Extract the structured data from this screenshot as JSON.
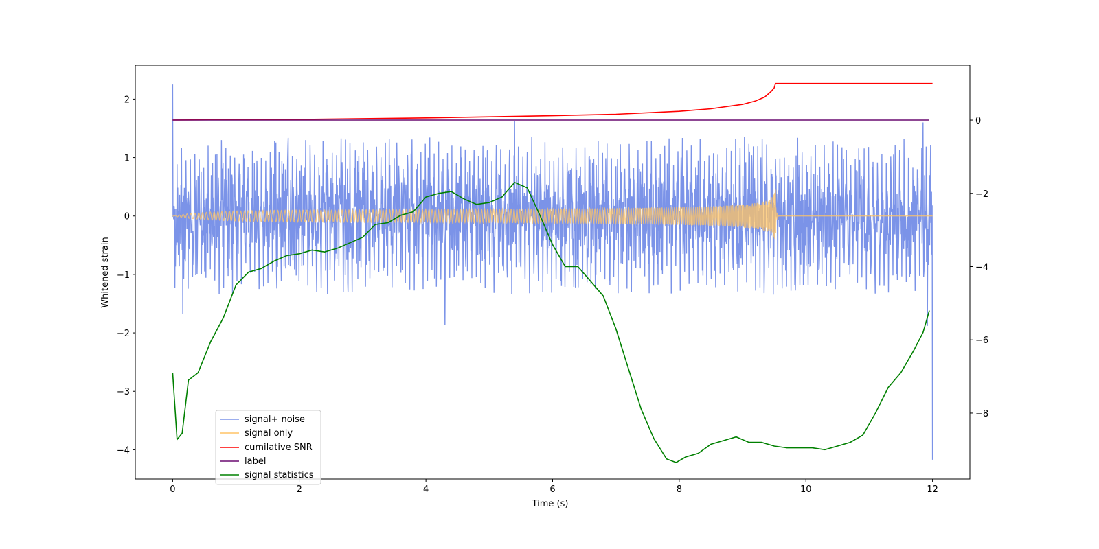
{
  "chart_data": {
    "type": "line",
    "xlabel": "Time (s)",
    "ylabel": "Whitened strain",
    "xlim": [
      -0.59,
      12.59
    ],
    "ylim_left": [
      -4.5,
      2.58
    ],
    "ylim_right": [
      -9.8,
      1.5
    ],
    "x_ticks": [
      0,
      2,
      4,
      6,
      8,
      10,
      12
    ],
    "y_ticks_left": [
      -4,
      -3,
      -2,
      -1,
      0,
      1,
      2
    ],
    "y_ticks_right": [
      -8,
      -6,
      -4,
      -2,
      0
    ],
    "x_tick_labels": [
      "0",
      "2",
      "4",
      "6",
      "8",
      "10",
      "12"
    ],
    "y_tick_labels_left": [
      "−4",
      "−3",
      "−2",
      "−1",
      "0",
      "1",
      "2"
    ],
    "y_tick_labels_right": [
      "−8",
      "−6",
      "−4",
      "−2",
      "0"
    ],
    "legend_position": "lower-left",
    "series": [
      {
        "name": "signal+ noise",
        "axis": "left",
        "color": "#7b93e8",
        "style": "dense noise, ±1 typical envelope with spikes",
        "x_range": [
          0,
          12
        ],
        "noise_envelope": [
          -1.0,
          1.0
        ],
        "spikes": [
          [
            0.0,
            2.25
          ],
          [
            0.16,
            -1.68
          ],
          [
            4.3,
            -1.86
          ],
          [
            5.4,
            1.62
          ],
          [
            11.85,
            1.6
          ],
          [
            11.92,
            -1.88
          ],
          [
            12.0,
            -4.17
          ]
        ]
      },
      {
        "name": "signal only",
        "axis": "left",
        "color": "#ffc466",
        "style": "chirp, amplitude growing to ±0.45 at merger",
        "x_range": [
          0,
          12
        ],
        "merger_time": 9.52,
        "peak_amplitude": 0.45
      },
      {
        "name": "cumilative SNR",
        "axis": "right",
        "color": "#ff0000",
        "x": [
          0,
          2,
          4,
          6,
          7,
          8,
          8.5,
          9,
          9.2,
          9.35,
          9.45,
          9.5,
          9.52,
          12
        ],
        "y": [
          0.0,
          0.02,
          0.06,
          0.12,
          0.16,
          0.24,
          0.31,
          0.43,
          0.52,
          0.63,
          0.78,
          0.88,
          1.0,
          1.0
        ]
      },
      {
        "name": "label",
        "axis": "right",
        "color": "#6a0a70",
        "x": [
          0,
          11.95
        ],
        "y": [
          0,
          0
        ]
      },
      {
        "name": "signal statistics",
        "axis": "right",
        "color": "#008000",
        "x": [
          0,
          0.07,
          0.15,
          0.25,
          0.4,
          0.6,
          0.8,
          1.0,
          1.2,
          1.4,
          1.6,
          1.8,
          2.0,
          2.2,
          2.4,
          2.6,
          2.8,
          3.0,
          3.2,
          3.4,
          3.6,
          3.8,
          4.0,
          4.2,
          4.4,
          4.6,
          4.8,
          5.0,
          5.2,
          5.4,
          5.6,
          5.8,
          6.0,
          6.2,
          6.4,
          6.6,
          6.8,
          7.0,
          7.2,
          7.4,
          7.6,
          7.8,
          7.95,
          8.1,
          8.3,
          8.5,
          8.7,
          8.9,
          9.1,
          9.3,
          9.5,
          9.7,
          9.9,
          10.1,
          10.3,
          10.5,
          10.7,
          10.9,
          11.1,
          11.3,
          11.5,
          11.7,
          11.85,
          11.95
        ],
        "y": [
          -6.9,
          -8.72,
          -8.55,
          -7.1,
          -6.9,
          -6.05,
          -5.4,
          -4.5,
          -4.15,
          -4.05,
          -3.85,
          -3.7,
          -3.65,
          -3.55,
          -3.6,
          -3.5,
          -3.35,
          -3.2,
          -2.85,
          -2.8,
          -2.6,
          -2.5,
          -2.1,
          -2.0,
          -1.95,
          -2.15,
          -2.3,
          -2.25,
          -2.1,
          -1.7,
          -1.85,
          -2.6,
          -3.4,
          -4.0,
          -4.0,
          -4.4,
          -4.8,
          -5.7,
          -6.8,
          -7.9,
          -8.7,
          -9.25,
          -9.35,
          -9.2,
          -9.1,
          -8.85,
          -8.75,
          -8.65,
          -8.8,
          -8.8,
          -8.9,
          -8.95,
          -8.95,
          -8.95,
          -9.0,
          -8.9,
          -8.8,
          -8.6,
          -8.0,
          -7.3,
          -6.9,
          -6.3,
          -5.8,
          -5.2
        ]
      }
    ]
  }
}
